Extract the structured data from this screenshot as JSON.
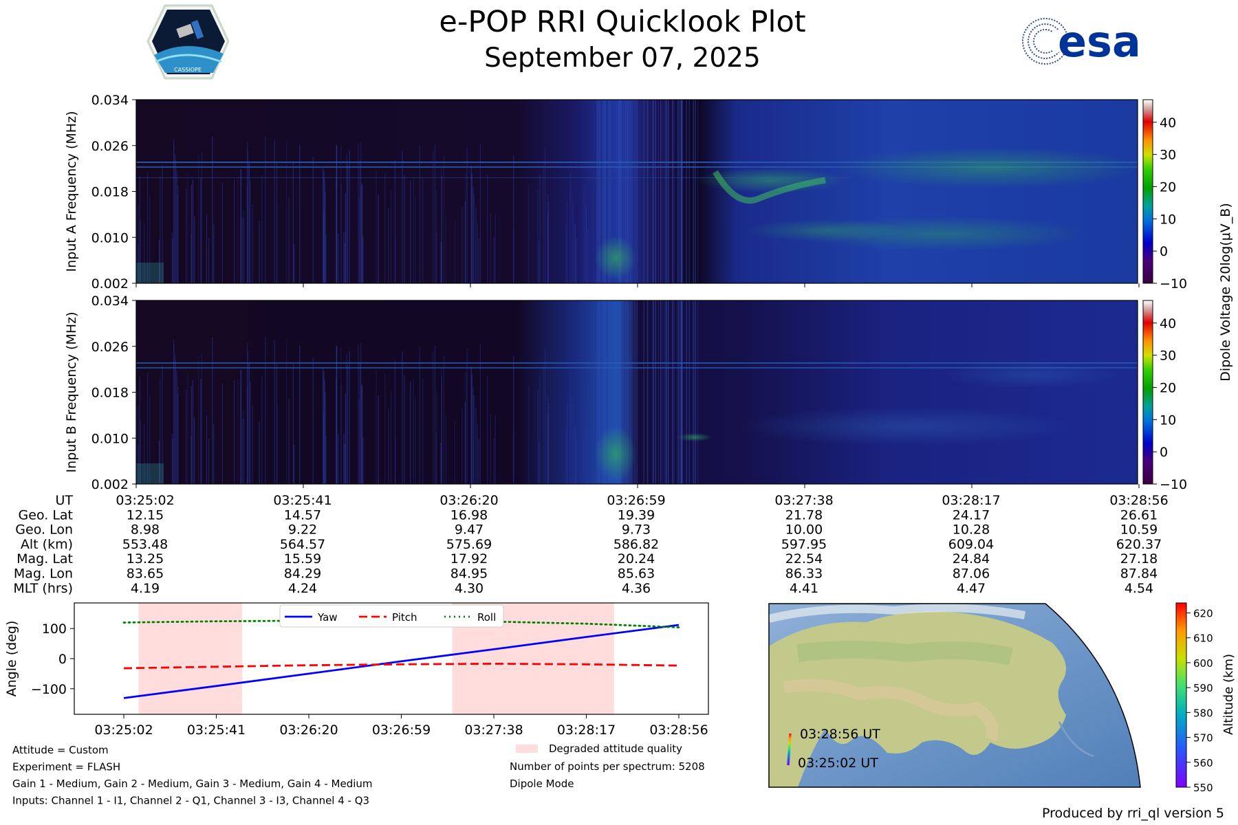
{
  "header": {
    "title": "e-POP RRI Quicklook Plot",
    "date": "September 07, 2025",
    "logo_left_text": "CASSIOPE",
    "logo_right_text": "esa"
  },
  "chart_data": [
    {
      "type": "heatmap",
      "name": "input-a",
      "ylabel": "Input A Frequency (MHz)",
      "yticks": [
        "0.034",
        "0.026",
        "0.018",
        "0.010",
        "0.002"
      ],
      "ylim": [
        0.002,
        0.034
      ]
    },
    {
      "type": "heatmap",
      "name": "input-b",
      "ylabel": "Input B Frequency (MHz)",
      "yticks": [
        "0.034",
        "0.026",
        "0.018",
        "0.010",
        "0.002"
      ],
      "ylim": [
        0.002,
        0.034
      ]
    },
    {
      "type": "colorbar",
      "name": "dipole-voltage",
      "label": "Dipole Voltage 20log(μV_B)",
      "ticks": [
        "40",
        "30",
        "20",
        "10",
        "0",
        "−10"
      ],
      "range": [
        -10,
        47
      ]
    },
    {
      "type": "table",
      "name": "orbit-table",
      "rows": [
        {
          "label": "UT",
          "values": [
            "03:25:02",
            "03:25:41",
            "03:26:20",
            "03:26:59",
            "03:27:38",
            "03:28:17",
            "03:28:56"
          ]
        },
        {
          "label": "Geo. Lat",
          "values": [
            "12.15",
            "14.57",
            "16.98",
            "19.39",
            "21.78",
            "24.17",
            "26.61"
          ]
        },
        {
          "label": "Geo. Lon",
          "values": [
            "8.98",
            "9.22",
            "9.47",
            "9.73",
            "10.00",
            "10.28",
            "10.59"
          ]
        },
        {
          "label": "Alt (km)",
          "values": [
            "553.48",
            "564.57",
            "575.69",
            "586.82",
            "597.95",
            "609.04",
            "620.37"
          ]
        },
        {
          "label": "Mag. Lat",
          "values": [
            "13.25",
            "15.59",
            "17.92",
            "20.24",
            "22.54",
            "24.84",
            "27.18"
          ]
        },
        {
          "label": "Mag. Lon",
          "values": [
            "83.65",
            "84.29",
            "84.95",
            "85.63",
            "86.33",
            "87.06",
            "87.84"
          ]
        },
        {
          "label": "MLT (hrs)",
          "values": [
            "4.19",
            "4.24",
            "4.30",
            "4.36",
            "4.41",
            "4.47",
            "4.54"
          ]
        }
      ]
    },
    {
      "type": "line",
      "name": "attitude",
      "ylabel": "Angle (deg)",
      "yticks": [
        "100",
        "0",
        "−100"
      ],
      "ylim": [
        -185,
        185
      ],
      "x": [
        "03:25:02",
        "03:25:41",
        "03:26:20",
        "03:26:59",
        "03:27:38",
        "03:28:17",
        "03:28:56"
      ],
      "series": [
        {
          "name": "Yaw",
          "color": "#0000ff",
          "style": "solid",
          "values": [
            -131,
            -91,
            -50,
            -9,
            31,
            72,
            112
          ]
        },
        {
          "name": "Pitch",
          "color": "#ff0000",
          "style": "dashed",
          "values": [
            -32,
            -27,
            -22,
            -19,
            -17,
            -19,
            -23
          ]
        },
        {
          "name": "Roll",
          "color": "#008000",
          "style": "dotted",
          "values": [
            120,
            124,
            126,
            126,
            123,
            116,
            104
          ]
        }
      ],
      "shaded_regions": [
        {
          "from_index": 0.16,
          "to_index": 1.28
        },
        {
          "from_index": 3.55,
          "to_index": 5.3
        }
      ],
      "legend_position": "top-center"
    },
    {
      "type": "map",
      "name": "ground-track",
      "labels": [
        "03:28:56 UT",
        "03:25:02 UT"
      ],
      "colorbar_label": "Altitude (km)",
      "colorbar_ticks": [
        "620",
        "610",
        "600",
        "590",
        "580",
        "570",
        "560",
        "550"
      ],
      "colorbar_range": [
        550,
        624
      ]
    }
  ],
  "footer": {
    "left": [
      "Attitude = Custom",
      "Experiment = FLASH",
      "Gain 1 - Medium, Gain 2 - Medium, Gain 3 - Medium, Gain 4 - Medium",
      "Inputs: Channel 1 - I1, Channel 2 - Q1, Channel 3 - I3, Channel 4 - Q3"
    ],
    "degraded_legend": "Degraded attitude quality",
    "points_per_spectrum": "Number of points per spectrum: 5208",
    "mode": "Dipole Mode",
    "credit": "Produced by rri_ql version 5"
  }
}
